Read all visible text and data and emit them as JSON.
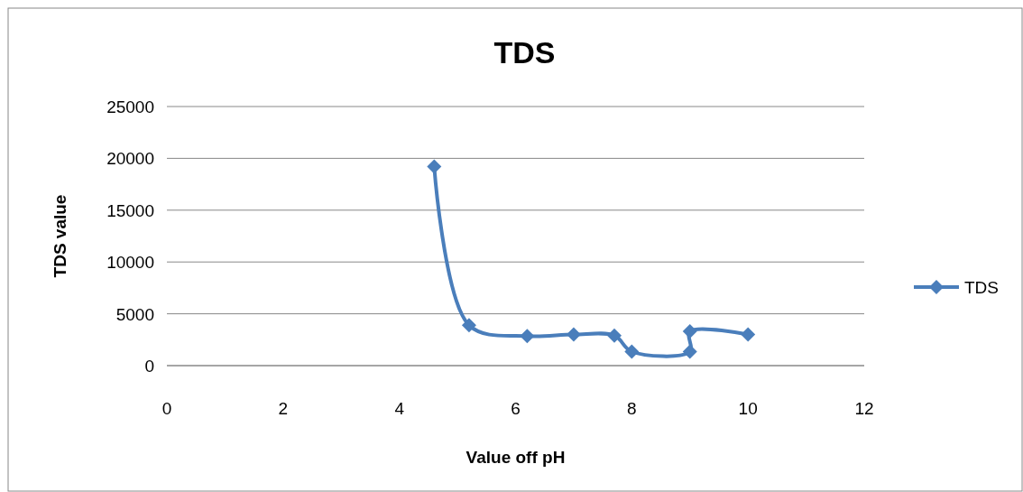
{
  "chart_data": {
    "type": "line",
    "title": "TDS",
    "xlabel": "Value off pH",
    "ylabel": "TDS value",
    "x": [
      4.6,
      5.2,
      6.2,
      7,
      7.7,
      8,
      9,
      9,
      10
    ],
    "series": [
      {
        "name": "TDS",
        "color": "#4a7ebb",
        "values": [
          19200,
          3900,
          2850,
          3000,
          2900,
          1350,
          1350,
          3300,
          3000
        ]
      }
    ],
    "xlim": [
      0,
      12
    ],
    "xticks": [
      0,
      2,
      4,
      6,
      8,
      10,
      12
    ],
    "ylim": [
      0,
      25000
    ],
    "yticks": [
      0,
      5000,
      10000,
      15000,
      20000,
      25000
    ],
    "grid": "y",
    "legend": "right",
    "marker": "diamond",
    "line_style": "solid"
  }
}
